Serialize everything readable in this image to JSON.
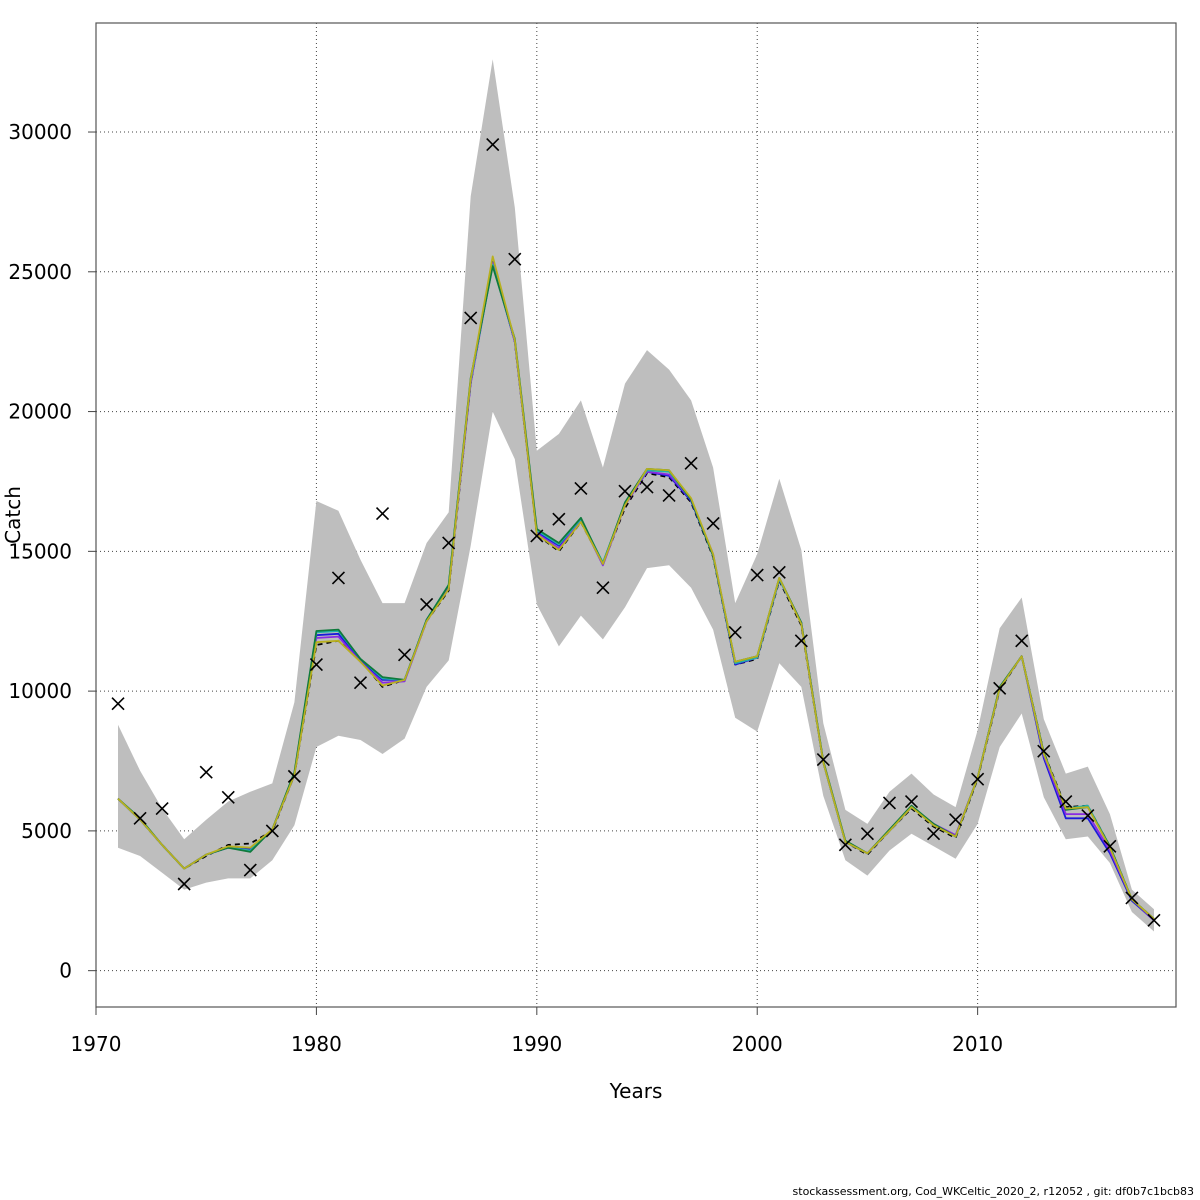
{
  "chart_data": {
    "type": "line",
    "xlabel": "Years",
    "ylabel": "Catch",
    "xlim": [
      1970,
      2019
    ],
    "ylim": [
      -1300,
      33900
    ],
    "x_ticks": [
      1970,
      1980,
      1990,
      2000,
      2010
    ],
    "y_ticks": [
      0,
      5000,
      10000,
      15000,
      20000,
      25000,
      30000
    ],
    "grid": true,
    "x": [
      1971,
      1972,
      1973,
      1974,
      1975,
      1976,
      1977,
      1978,
      1979,
      1980,
      1981,
      1982,
      1983,
      1984,
      1985,
      1986,
      1987,
      1988,
      1989,
      1990,
      1991,
      1992,
      1993,
      1994,
      1995,
      1996,
      1997,
      1998,
      1999,
      2000,
      2001,
      2002,
      2003,
      2004,
      2005,
      2006,
      2007,
      2008,
      2009,
      2010,
      2011,
      2012,
      2013,
      2014,
      2015,
      2016,
      2017,
      2018
    ],
    "band": {
      "lower": [
        4400,
        4100,
        3500,
        2900,
        3150,
        3300,
        3300,
        3950,
        5200,
        8000,
        8400,
        8250,
        7750,
        8300,
        10150,
        11100,
        15200,
        20000,
        18300,
        13100,
        11600,
        12700,
        11850,
        13000,
        14400,
        14500,
        13700,
        12200,
        9050,
        8550,
        11000,
        10150,
        6250,
        3950,
        3400,
        4300,
        4900,
        4450,
        4000,
        5250,
        8000,
        9200,
        6200,
        4700,
        4800,
        3850,
        2100,
        1400
      ],
      "upper": [
        8800,
        7150,
        5800,
        4700,
        5400,
        6050,
        6400,
        6700,
        9600,
        16800,
        16450,
        14700,
        13150,
        13150,
        15300,
        16400,
        27700,
        32600,
        27300,
        18600,
        19200,
        20400,
        18000,
        21000,
        22200,
        21500,
        20400,
        18000,
        13150,
        14900,
        17600,
        15050,
        8850,
        5750,
        5250,
        6400,
        7050,
        6300,
        5850,
        8600,
        12250,
        13350,
        9000,
        7050,
        7300,
        5600,
        2900,
        2200
      ]
    },
    "series": [
      {
        "color": "#000000",
        "dashed": true,
        "values": [
          6150,
          5400,
          4500,
          3650,
          4100,
          4500,
          4550,
          5000,
          7000,
          11650,
          11800,
          11100,
          10150,
          10400,
          12500,
          13600,
          21000,
          25350,
          22500,
          15600,
          15000,
          16050,
          14550,
          16550,
          17800,
          17650,
          16750,
          14800,
          10950,
          11150,
          13950,
          12350,
          7450,
          4600,
          4150,
          5000,
          5800,
          5150,
          4750,
          6850,
          10050,
          11250,
          7800,
          5850,
          5900,
          4450,
          2550,
          1850
        ]
      },
      {
        "color": "#1b1bd9",
        "values": [
          6150,
          5400,
          4500,
          3650,
          4150,
          4400,
          4350,
          5050,
          7000,
          12000,
          12050,
          11100,
          10400,
          10400,
          12550,
          13750,
          21050,
          25350,
          22500,
          15700,
          15200,
          16100,
          14550,
          16700,
          17850,
          17700,
          16800,
          14850,
          10950,
          11200,
          14000,
          12450,
          7450,
          4600,
          4200,
          5000,
          5850,
          5250,
          4800,
          6900,
          10100,
          11250,
          7600,
          5450,
          5450,
          4200,
          2500,
          1800
        ]
      },
      {
        "color": "#8a2be2",
        "values": [
          6150,
          5400,
          4500,
          3650,
          4150,
          4400,
          4300,
          5050,
          7050,
          11900,
          11950,
          11050,
          10300,
          10350,
          12500,
          13700,
          21000,
          25300,
          22500,
          15650,
          15100,
          16100,
          14500,
          16650,
          17850,
          17750,
          16850,
          14900,
          11000,
          11200,
          14000,
          12450,
          7450,
          4600,
          4200,
          5000,
          5850,
          5250,
          4850,
          6900,
          10100,
          11250,
          7700,
          5600,
          5600,
          4300,
          2550,
          1800
        ]
      },
      {
        "color": "#20b2aa",
        "values": [
          6150,
          5400,
          4500,
          3650,
          4150,
          4400,
          4300,
          5050,
          7050,
          12100,
          12150,
          11150,
          10450,
          10400,
          12550,
          13800,
          21100,
          25250,
          22550,
          15750,
          15250,
          16150,
          14600,
          16700,
          17900,
          17850,
          16850,
          14850,
          11000,
          11200,
          14000,
          12450,
          7450,
          4600,
          4200,
          5000,
          5850,
          5200,
          4800,
          6900,
          10100,
          11250,
          7750,
          5800,
          5900,
          4450,
          2550,
          1850
        ]
      },
      {
        "color": "#0f7a3c",
        "values": [
          6150,
          5450,
          4500,
          3650,
          4150,
          4400,
          4250,
          5050,
          7100,
          12150,
          12200,
          11150,
          10500,
          10400,
          12550,
          13800,
          21200,
          25200,
          22600,
          15800,
          15300,
          16200,
          14550,
          16750,
          17950,
          17900,
          16850,
          14850,
          11050,
          11250,
          14050,
          12450,
          7500,
          4650,
          4200,
          5050,
          5900,
          5250,
          4800,
          6900,
          10150,
          11250,
          7800,
          5750,
          5850,
          4450,
          2550,
          1850
        ]
      },
      {
        "color": "#b8b020",
        "values": [
          6150,
          5400,
          4500,
          3650,
          4150,
          4450,
          4400,
          5050,
          7000,
          11750,
          11800,
          11050,
          10200,
          10400,
          12500,
          13650,
          21150,
          25550,
          22550,
          15600,
          15050,
          16050,
          14550,
          16650,
          17950,
          17900,
          16900,
          14900,
          11050,
          11250,
          14050,
          12400,
          7450,
          4600,
          4200,
          5000,
          5850,
          5200,
          4800,
          6900,
          10100,
          11250,
          7750,
          5800,
          5850,
          4400,
          2550,
          1850
        ]
      }
    ],
    "observations": {
      "x": [
        1971,
        1972,
        1973,
        1974,
        1975,
        1976,
        1977,
        1978,
        1979,
        1980,
        1981,
        1982,
        1983,
        1984,
        1985,
        1986,
        1987,
        1988,
        1989,
        1990,
        1991,
        1992,
        1993,
        1994,
        1995,
        1996,
        1997,
        1998,
        1999,
        2000,
        2001,
        2002,
        2003,
        2004,
        2005,
        2006,
        2007,
        2008,
        2009,
        2010,
        2011,
        2012,
        2013,
        2014,
        2015,
        2016,
        2017,
        2018
      ],
      "y": [
        9550,
        5450,
        5800,
        3100,
        7100,
        6200,
        3600,
        5000,
        6950,
        10950,
        14050,
        10300,
        16350,
        11300,
        13100,
        15300,
        23350,
        29550,
        25450,
        15550,
        16150,
        17250,
        13700,
        17150,
        17300,
        17000,
        18150,
        16000,
        12100,
        14150,
        14250,
        11800,
        7550,
        4500,
        4900,
        6000,
        6050,
        4900,
        5400,
        6850,
        10100,
        11800,
        7850,
        6050,
        5550,
        4450,
        2600,
        1800
      ],
      "marker": "x"
    }
  },
  "footer": {
    "text": "stockassessment.org, Cod_WKCeltic_2020_2, r12052 , git: df0b7c1bcb83"
  }
}
